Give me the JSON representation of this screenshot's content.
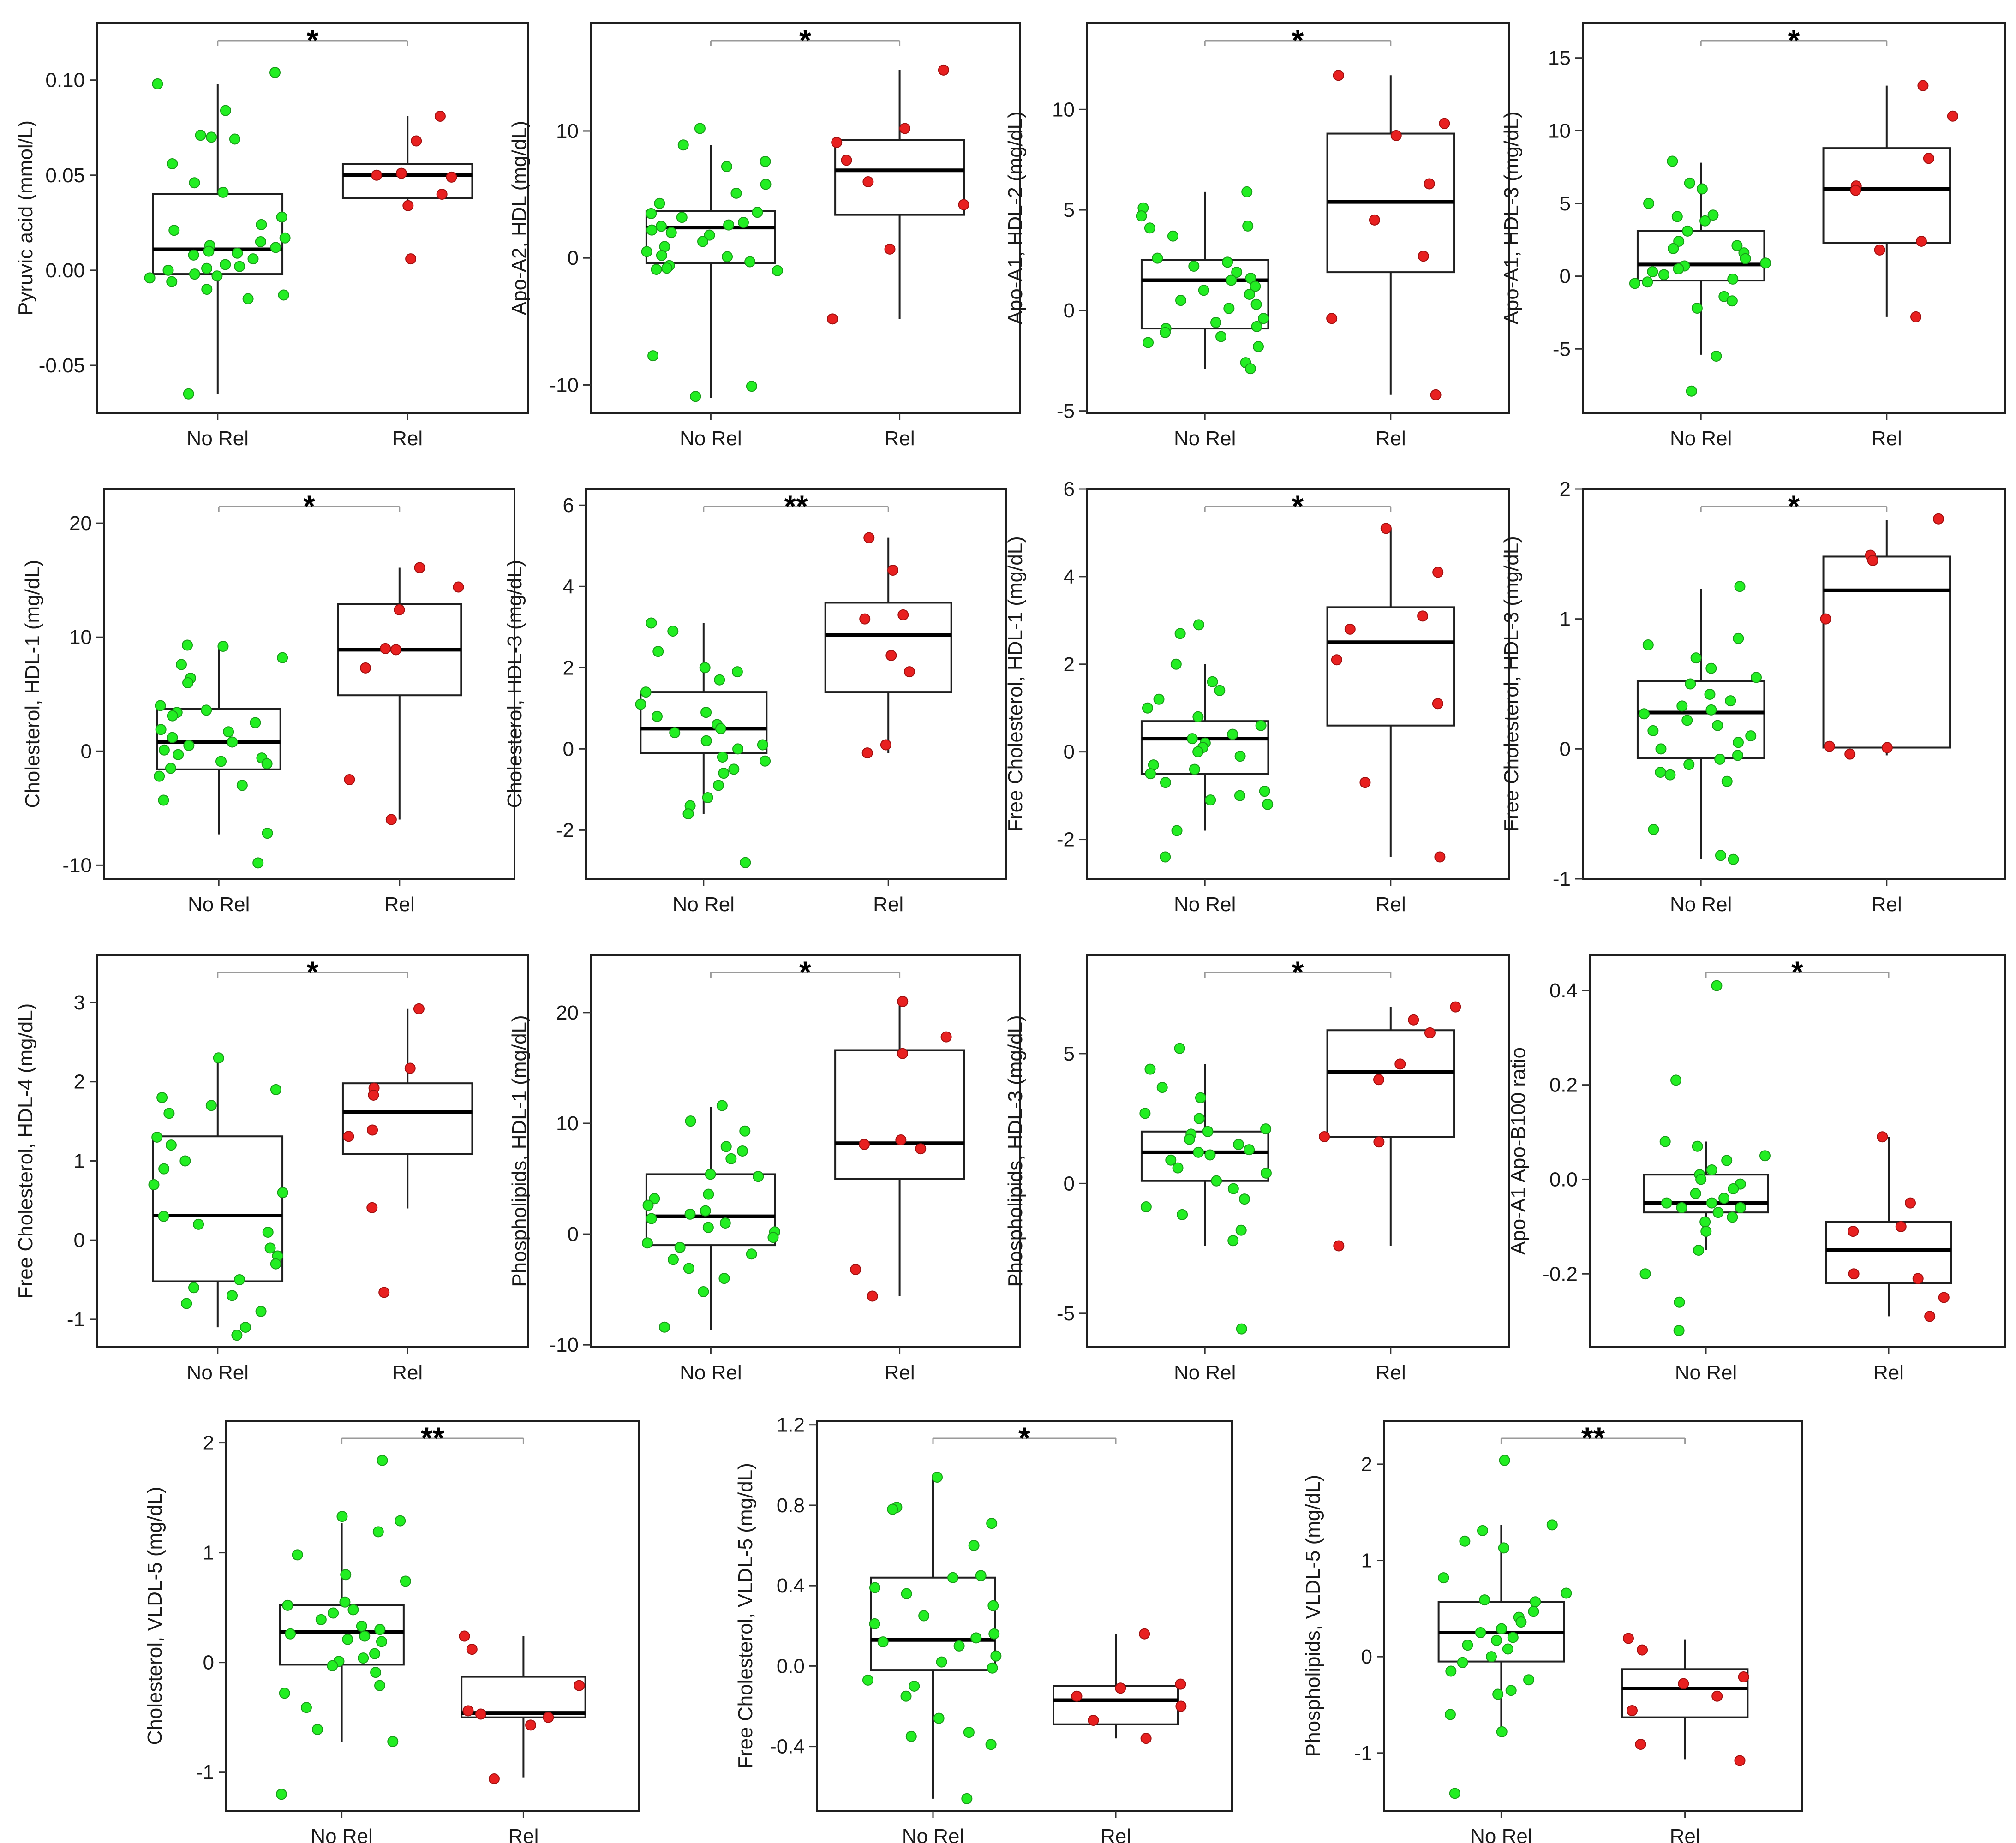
{
  "colors": {
    "no_rel": "#22ee22",
    "rel": "#e82020"
  },
  "chart_data": [
    {
      "type": "box",
      "ylabel": "Pyruvic acid (mmol/L)",
      "significance": "*",
      "categories": [
        "No Rel",
        "Rel"
      ],
      "ylim": [
        -0.075,
        0.13
      ],
      "ticks": [
        -0.05,
        0,
        0.05,
        0.1
      ],
      "tick_labels": [
        "-0.05",
        "0.00",
        "0.05",
        "0.10"
      ],
      "boxes": [
        {
          "min": -0.065,
          "q1": -0.002,
          "median": 0.011,
          "q3": 0.04,
          "max": 0.098
        },
        {
          "min": 0.035,
          "q1": 0.038,
          "median": 0.05,
          "q3": 0.056,
          "max": 0.081
        }
      ],
      "points": [
        [
          0.104,
          0.098,
          0.084,
          0.071,
          0.07,
          0.069,
          0.056,
          0.046,
          0.041,
          0.028,
          0.024,
          0.021,
          0.017,
          0.015,
          0.013,
          0.012,
          0.01,
          0.009,
          0.008,
          0.006,
          0.003,
          0.002,
          0.001,
          0.0,
          -0.002,
          -0.003,
          -0.004,
          -0.006,
          -0.01,
          -0.013,
          -0.015,
          -0.065
        ],
        [
          0.081,
          0.068,
          0.051,
          0.05,
          0.049,
          0.04,
          0.034,
          0.006
        ]
      ]
    },
    {
      "type": "box",
      "ylabel": "Apo-A2, HDL (mg/dL)",
      "significance": "*",
      "categories": [
        "No Rel",
        "Rel"
      ],
      "ylim": [
        -12.2,
        18.5
      ],
      "ticks": [
        -10,
        0,
        10
      ],
      "tick_labels": [
        "-10",
        "0",
        "10"
      ],
      "boxes": [
        {
          "min": -11,
          "q1": -0.4,
          "median": 2.4,
          "q3": 3.7,
          "max": 8.9
        },
        {
          "min": -4.8,
          "q1": 3.4,
          "median": 6.9,
          "q3": 9.3,
          "max": 14.8
        }
      ],
      "points": [
        [
          10.2,
          8.9,
          7.6,
          7.2,
          5.8,
          5.1,
          4.3,
          3.6,
          3.5,
          3.2,
          2.8,
          2.6,
          2.5,
          2.2,
          2.0,
          1.8,
          1.3,
          0.9,
          0.5,
          0.2,
          0.1,
          -0.3,
          -0.6,
          -0.8,
          -0.9,
          -1.0,
          -7.7,
          -10.1,
          -10.9
        ],
        [
          14.8,
          10.2,
          9.1,
          7.7,
          6.0,
          4.2,
          0.7,
          -4.8
        ]
      ]
    },
    {
      "type": "box",
      "ylabel": "Apo-A1, HDL-2 (mg/dL)",
      "significance": "*",
      "categories": [
        "No Rel",
        "Rel"
      ],
      "ylim": [
        -5.1,
        14.3
      ],
      "ticks": [
        -5,
        0,
        5,
        10
      ],
      "tick_labels": [
        "-5",
        "0",
        "5",
        "10"
      ],
      "boxes": [
        {
          "min": -2.9,
          "q1": -0.9,
          "median": 1.5,
          "q3": 2.5,
          "max": 5.9
        },
        {
          "min": -4.2,
          "q1": 1.9,
          "median": 5.4,
          "q3": 8.8,
          "max": 11.7
        }
      ],
      "points": [
        [
          5.9,
          5.1,
          4.7,
          4.2,
          4.1,
          3.7,
          2.6,
          2.4,
          2.2,
          1.9,
          1.6,
          1.5,
          1.2,
          1.0,
          0.8,
          0.5,
          0.3,
          0.1,
          -0.4,
          -0.6,
          -0.8,
          -0.9,
          -1.1,
          -1.3,
          -1.6,
          -1.8,
          -2.6,
          -2.9
        ],
        [
          11.7,
          9.3,
          8.7,
          6.3,
          4.5,
          2.7,
          -0.4,
          -4.2
        ]
      ]
    },
    {
      "type": "box",
      "ylabel": "Apo-A1, HDL-3 (mg/dL)",
      "significance": "*",
      "categories": [
        "No Rel",
        "Rel"
      ],
      "ylim": [
        -9.4,
        17.4
      ],
      "ticks": [
        -5,
        0,
        5,
        10,
        15
      ],
      "tick_labels": [
        "-5",
        "0",
        "5",
        "10",
        "15"
      ],
      "boxes": [
        {
          "min": -5.4,
          "q1": -0.3,
          "median": 0.8,
          "q3": 3.1,
          "max": 7.8
        },
        {
          "min": -2.8,
          "q1": 2.3,
          "median": 6.0,
          "q3": 8.8,
          "max": 13.1
        }
      ],
      "points": [
        [
          7.9,
          6.4,
          6.0,
          5.0,
          4.2,
          4.1,
          3.8,
          3.1,
          2.4,
          2.1,
          1.9,
          1.6,
          1.2,
          0.9,
          0.7,
          0.5,
          0.3,
          0.1,
          -0.2,
          -0.4,
          -0.5,
          -1.4,
          -1.7,
          -2.2,
          -5.5,
          -7.9
        ],
        [
          13.1,
          11.0,
          8.1,
          6.2,
          5.9,
          2.4,
          1.8,
          -2.8
        ]
      ]
    },
    {
      "type": "box",
      "ylabel": "Cholesterol, HDL-1 (mg/dL)",
      "significance": "*",
      "categories": [
        "No Rel",
        "Rel"
      ],
      "ylim": [
        -11.2,
        23
      ],
      "ticks": [
        -10,
        0,
        10,
        20
      ],
      "tick_labels": [
        "-10",
        "0",
        "10",
        "20"
      ],
      "boxes": [
        {
          "min": -7.3,
          "q1": -1.6,
          "median": 0.8,
          "q3": 3.7,
          "max": 9.2
        },
        {
          "min": -6.0,
          "q1": 4.9,
          "median": 8.9,
          "q3": 12.9,
          "max": 16.1
        }
      ],
      "points": [
        [
          9.3,
          9.2,
          8.2,
          7.6,
          6.4,
          6.0,
          4.0,
          3.6,
          3.4,
          3.1,
          2.5,
          1.9,
          1.7,
          1.2,
          0.8,
          0.5,
          0.1,
          -0.3,
          -0.6,
          -0.9,
          -1.1,
          -1.5,
          -2.2,
          -3.0,
          -4.3,
          -7.2,
          -9.8
        ],
        [
          16.1,
          14.4,
          12.4,
          9.0,
          8.9,
          7.3,
          -2.5,
          -6.0
        ]
      ]
    },
    {
      "type": "box",
      "ylabel": "Cholesterol, HDL-3 (mg/dL)",
      "significance": "**",
      "categories": [
        "No Rel",
        "Rel"
      ],
      "ylim": [
        -3.2,
        6.4
      ],
      "ticks": [
        -2,
        0,
        2,
        4,
        6
      ],
      "tick_labels": [
        "-2",
        "0",
        "2",
        "4",
        "6"
      ],
      "boxes": [
        {
          "min": -1.6,
          "q1": -0.1,
          "median": 0.5,
          "q3": 1.4,
          "max": 3.1
        },
        {
          "min": -0.1,
          "q1": 1.4,
          "median": 2.8,
          "q3": 3.6,
          "max": 5.2
        }
      ],
      "points": [
        [
          3.1,
          2.9,
          2.4,
          2.0,
          1.9,
          1.7,
          1.4,
          1.1,
          0.9,
          0.8,
          0.6,
          0.5,
          0.4,
          0.2,
          0.1,
          0.0,
          -0.2,
          -0.3,
          -0.5,
          -0.6,
          -0.9,
          -1.2,
          -1.4,
          -1.6,
          -2.8
        ],
        [
          5.2,
          4.4,
          3.3,
          3.2,
          2.3,
          1.9,
          0.1,
          -0.1
        ]
      ]
    },
    {
      "type": "box",
      "ylabel": "Free Cholesterol, HDL-1 (mg/dL)",
      "significance": "*",
      "categories": [
        "No Rel",
        "Rel"
      ],
      "ylim": [
        -2.9,
        6.0
      ],
      "ticks": [
        -2,
        0,
        2,
        4,
        6
      ],
      "tick_labels": [
        "-2",
        "0",
        "2",
        "4",
        "6"
      ],
      "boxes": [
        {
          "min": -1.8,
          "q1": -0.5,
          "median": 0.3,
          "q3": 0.7,
          "max": 2.0
        },
        {
          "min": -2.4,
          "q1": 0.6,
          "median": 2.5,
          "q3": 3.3,
          "max": 5.1
        }
      ],
      "points": [
        [
          2.9,
          2.7,
          2.0,
          1.6,
          1.4,
          1.2,
          1.0,
          0.8,
          0.6,
          0.4,
          0.3,
          0.2,
          0.1,
          0.0,
          -0.1,
          -0.3,
          -0.4,
          -0.5,
          -0.7,
          -0.9,
          -1.0,
          -1.1,
          -1.2,
          -1.8,
          -2.4
        ],
        [
          5.1,
          4.1,
          3.1,
          2.8,
          2.1,
          1.1,
          -0.7,
          -2.4
        ]
      ]
    },
    {
      "type": "box",
      "ylabel": "Free Cholesterol, HDL-3 (mg/dL)",
      "significance": "*",
      "categories": [
        "No Rel",
        "Rel"
      ],
      "ylim": [
        -1.0,
        2.0
      ],
      "ticks": [
        -1,
        0,
        1,
        2
      ],
      "tick_labels": [
        "-1",
        "0",
        "1",
        "2"
      ],
      "boxes": [
        {
          "min": -0.85,
          "q1": -0.07,
          "median": 0.28,
          "q3": 0.52,
          "max": 1.23
        },
        {
          "min": -0.05,
          "q1": 0.01,
          "median": 1.22,
          "q3": 1.48,
          "max": 1.76
        }
      ],
      "points": [
        [
          1.25,
          0.85,
          0.8,
          0.7,
          0.62,
          0.55,
          0.5,
          0.42,
          0.37,
          0.33,
          0.3,
          0.27,
          0.22,
          0.18,
          0.14,
          0.1,
          0.05,
          0.0,
          -0.05,
          -0.08,
          -0.12,
          -0.18,
          -0.2,
          -0.25,
          -0.62,
          -0.82,
          -0.85
        ],
        [
          1.77,
          1.49,
          1.45,
          1.0,
          0.02,
          0.01,
          -0.04
        ]
      ]
    },
    {
      "type": "box",
      "ylabel": "Free Cholesterol, HDL-4 (mg/dL)",
      "significance": "*",
      "categories": [
        "No Rel",
        "Rel"
      ],
      "ylim": [
        -1.35,
        3.6
      ],
      "ticks": [
        -1,
        0,
        1,
        2,
        3
      ],
      "tick_labels": [
        "-1",
        "0",
        "1",
        "2",
        "3"
      ],
      "boxes": [
        {
          "min": -1.1,
          "q1": -0.52,
          "median": 0.31,
          "q3": 1.31,
          "max": 2.28
        },
        {
          "min": 0.4,
          "q1": 1.09,
          "median": 1.62,
          "q3": 1.98,
          "max": 2.92
        }
      ],
      "points": [
        [
          2.3,
          1.9,
          1.8,
          1.7,
          1.6,
          1.3,
          1.2,
          1.0,
          0.9,
          0.7,
          0.6,
          0.3,
          0.2,
          0.1,
          -0.1,
          -0.2,
          -0.3,
          -0.5,
          -0.6,
          -0.7,
          -0.8,
          -0.9,
          -1.1,
          -1.2
        ],
        [
          2.92,
          2.17,
          1.92,
          1.83,
          1.39,
          1.31,
          0.41,
          -0.66
        ]
      ]
    },
    {
      "type": "box",
      "ylabel": "Phospholipids, HDL-1 (mg/dL)",
      "significance": "*",
      "categories": [
        "No Rel",
        "Rel"
      ],
      "ylim": [
        -10.2,
        25.2
      ],
      "ticks": [
        -10,
        0,
        10,
        20
      ],
      "tick_labels": [
        "-10",
        "0",
        "10",
        "20"
      ],
      "boxes": [
        {
          "min": -8.7,
          "q1": -1.0,
          "median": 1.6,
          "q3": 5.4,
          "max": 11.5
        },
        {
          "min": -5.6,
          "q1": 5.0,
          "median": 8.2,
          "q3": 16.6,
          "max": 20.8
        }
      ],
      "points": [
        [
          11.6,
          10.2,
          9.3,
          7.9,
          7.5,
          6.8,
          5.4,
          5.2,
          3.6,
          3.2,
          2.6,
          2.1,
          1.8,
          1.4,
          1.0,
          0.6,
          0.2,
          -0.3,
          -0.8,
          -1.2,
          -1.8,
          -2.3,
          -3.1,
          -4.0,
          -5.2,
          -8.4
        ],
        [
          21.0,
          17.8,
          16.3,
          8.5,
          8.1,
          7.7,
          -3.2,
          -5.6
        ]
      ]
    },
    {
      "type": "box",
      "ylabel": "Phospholipids, HDL-3 (mg/dL)",
      "significance": "*",
      "categories": [
        "No Rel",
        "Rel"
      ],
      "ylim": [
        -6.3,
        8.8
      ],
      "ticks": [
        -5,
        0,
        5
      ],
      "tick_labels": [
        "-5",
        "0",
        "5"
      ],
      "boxes": [
        {
          "min": -2.4,
          "q1": 0.1,
          "median": 1.2,
          "q3": 2.0,
          "max": 4.6
        },
        {
          "min": -2.4,
          "q1": 1.8,
          "median": 4.3,
          "q3": 5.9,
          "max": 6.8
        }
      ],
      "points": [
        [
          5.2,
          4.4,
          3.7,
          3.3,
          2.7,
          2.5,
          2.1,
          2.0,
          1.9,
          1.7,
          1.5,
          1.3,
          1.2,
          1.1,
          0.9,
          0.6,
          0.4,
          0.1,
          -0.2,
          -0.6,
          -0.9,
          -1.2,
          -1.8,
          -2.2,
          -5.6
        ],
        [
          6.8,
          6.3,
          5.8,
          4.6,
          4.0,
          1.8,
          1.6,
          -2.4
        ]
      ]
    },
    {
      "type": "box",
      "ylabel": "Apo-A1  Apo-B100  ratio",
      "significance": "*",
      "categories": [
        "No Rel",
        "Rel"
      ],
      "ylim": [
        -0.355,
        0.475
      ],
      "ticks": [
        -0.2,
        0,
        0.2,
        0.4
      ],
      "tick_labels": [
        "-0.2",
        "0.0",
        "0.2",
        "0.4"
      ],
      "boxes": [
        {
          "min": -0.15,
          "q1": -0.07,
          "median": -0.05,
          "q3": 0.01,
          "max": 0.08
        },
        {
          "min": -0.29,
          "q1": -0.22,
          "median": -0.15,
          "q3": -0.09,
          "max": 0.09
        }
      ],
      "points": [
        [
          0.41,
          0.21,
          0.08,
          0.07,
          0.05,
          0.04,
          0.02,
          0.01,
          0.0,
          -0.01,
          -0.02,
          -0.03,
          -0.04,
          -0.05,
          -0.05,
          -0.06,
          -0.06,
          -0.07,
          -0.08,
          -0.09,
          -0.11,
          -0.15,
          -0.2,
          -0.26,
          -0.32
        ],
        [
          0.09,
          -0.05,
          -0.1,
          -0.11,
          -0.2,
          -0.21,
          -0.25,
          -0.29
        ]
      ]
    },
    {
      "type": "box",
      "ylabel": "Cholesterol, VLDL-5 (mg/dL)",
      "significance": "**",
      "categories": [
        "No Rel",
        "Rel"
      ],
      "ylim": [
        -1.35,
        2.2
      ],
      "ticks": [
        -1,
        0,
        1,
        2
      ],
      "tick_labels": [
        "-1",
        "0",
        "1",
        "2"
      ],
      "boxes": [
        {
          "min": -0.72,
          "q1": -0.02,
          "median": 0.28,
          "q3": 0.52,
          "max": 1.27
        },
        {
          "min": -1.05,
          "q1": -0.5,
          "median": -0.46,
          "q3": -0.13,
          "max": 0.24
        }
      ],
      "points": [
        [
          1.84,
          1.33,
          1.29,
          1.19,
          0.98,
          0.8,
          0.74,
          0.55,
          0.52,
          0.48,
          0.45,
          0.39,
          0.33,
          0.3,
          0.26,
          0.24,
          0.21,
          0.19,
          0.08,
          0.04,
          0.01,
          -0.03,
          -0.09,
          -0.21,
          -0.28,
          -0.41,
          -0.61,
          -0.72,
          -1.2
        ],
        [
          0.24,
          0.12,
          -0.21,
          -0.44,
          -0.47,
          -0.5,
          -0.57,
          -1.06
        ]
      ]
    },
    {
      "type": "box",
      "ylabel": "Free Cholesterol, VLDL-5 (mg/dL)",
      "significance": "*",
      "categories": [
        "No Rel",
        "Rel"
      ],
      "ylim": [
        -0.72,
        1.22
      ],
      "ticks": [
        -0.4,
        0,
        0.4,
        0.8,
        1.2
      ],
      "tick_labels": [
        "-0.4",
        "0.0",
        "0.4",
        "0.8",
        "1.2"
      ],
      "boxes": [
        {
          "min": -0.66,
          "q1": -0.02,
          "median": 0.13,
          "q3": 0.44,
          "max": 0.94
        },
        {
          "min": -0.36,
          "q1": -0.29,
          "median": -0.17,
          "q3": -0.1,
          "max": 0.16
        }
      ],
      "points": [
        [
          0.94,
          0.79,
          0.78,
          0.71,
          0.6,
          0.45,
          0.44,
          0.39,
          0.36,
          0.3,
          0.25,
          0.21,
          0.16,
          0.14,
          0.12,
          0.1,
          0.05,
          0.02,
          -0.01,
          -0.07,
          -0.1,
          -0.15,
          -0.26,
          -0.33,
          -0.35,
          -0.39,
          -0.66
        ],
        [
          0.16,
          -0.09,
          -0.11,
          -0.15,
          -0.2,
          -0.27,
          -0.36
        ]
      ]
    },
    {
      "type": "box",
      "ylabel": "Phospholipids, VLDL-5 (mg/dL)",
      "significance": "**",
      "categories": [
        "No Rel",
        "Rel"
      ],
      "ylim": [
        -1.6,
        2.45
      ],
      "ticks": [
        -1,
        0,
        1,
        2
      ],
      "tick_labels": [
        "-1",
        "0",
        "1",
        "2"
      ],
      "boxes": [
        {
          "min": -0.78,
          "q1": -0.05,
          "median": 0.25,
          "q3": 0.57,
          "max": 1.37
        },
        {
          "min": -1.07,
          "q1": -0.63,
          "median": -0.33,
          "q3": -0.13,
          "max": 0.18
        }
      ],
      "points": [
        [
          2.04,
          1.37,
          1.31,
          1.2,
          1.13,
          0.82,
          0.66,
          0.59,
          0.57,
          0.47,
          0.41,
          0.36,
          0.29,
          0.25,
          0.2,
          0.17,
          0.12,
          0.08,
          0.0,
          -0.06,
          -0.15,
          -0.24,
          -0.35,
          -0.39,
          -0.6,
          -0.78,
          -1.42
        ],
        [
          0.19,
          0.07,
          -0.21,
          -0.28,
          -0.41,
          -0.56,
          -0.91,
          -1.08
        ]
      ]
    }
  ]
}
